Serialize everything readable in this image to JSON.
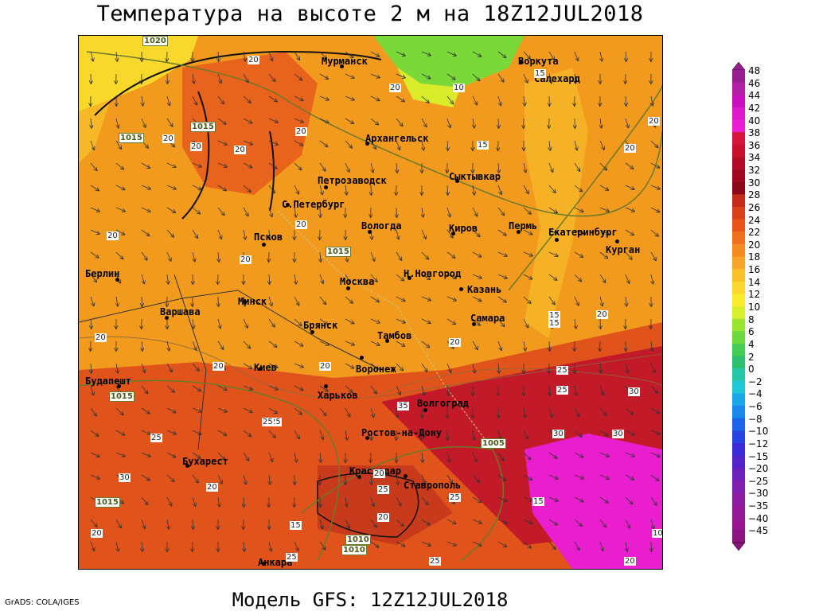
{
  "title": "Температура на высоте 2 м на 18Z12JUL2018",
  "footer": "Модель GFS: 12Z12JUL2018",
  "credit": "GrADS: COLA/IGES",
  "legend": {
    "labels": [
      "48",
      "46",
      "44",
      "42",
      "40",
      "38",
      "36",
      "34",
      "32",
      "30",
      "28",
      "26",
      "24",
      "22",
      "20",
      "18",
      "16",
      "14",
      "12",
      "10",
      "8",
      "6",
      "4",
      "2",
      "0",
      "−2",
      "−4",
      "−6",
      "−8",
      "−10",
      "−12",
      "−15",
      "−20",
      "−25",
      "−30",
      "−35",
      "−40",
      "−45"
    ],
    "colors": [
      "#9a1d8f",
      "#b41fa8",
      "#c80fb9",
      "#dc19c8",
      "#ec1ed2",
      "#d9143c",
      "#c8102c",
      "#b40c24",
      "#a00a1c",
      "#8c0814",
      "#c42a18",
      "#d8401a",
      "#e8561c",
      "#f07020",
      "#f58a22",
      "#f8a426",
      "#fac02a",
      "#fcd82e",
      "#f8ec2c",
      "#d8ef2a",
      "#9ce630",
      "#6cda3a",
      "#44cc54",
      "#2cc070",
      "#20c8a8",
      "#1cc8d8",
      "#18a8e8",
      "#1888ec",
      "#1c64ec",
      "#2844e4",
      "#3c2cd8",
      "#5424c8",
      "#6c20bc",
      "#8020b0",
      "#8c1ca4",
      "#941898",
      "#961690",
      "#8a1480"
    ]
  },
  "cities": [
    {
      "name": "Мурманск"
    },
    {
      "name": "Воркута"
    },
    {
      "name": "Салехард"
    },
    {
      "name": "Архангельск"
    },
    {
      "name": "Петрозаводск"
    },
    {
      "name": "Сыктывкар"
    },
    {
      "name": "С.Петербург"
    },
    {
      "name": "Вологда"
    },
    {
      "name": "Киров"
    },
    {
      "name": "Пермь"
    },
    {
      "name": "Екатеринбург"
    },
    {
      "name": "Курган"
    },
    {
      "name": "Псков"
    },
    {
      "name": "Берлин"
    },
    {
      "name": "Москва"
    },
    {
      "name": "Н.Новгород"
    },
    {
      "name": "Казань"
    },
    {
      "name": "Минск"
    },
    {
      "name": "Варшава"
    },
    {
      "name": "Брянск"
    },
    {
      "name": "Самара"
    },
    {
      "name": "Тамбов"
    },
    {
      "name": "Киев"
    },
    {
      "name": "Воронеж"
    },
    {
      "name": "Будапешт"
    },
    {
      "name": "Харьков"
    },
    {
      "name": "Волгоград"
    },
    {
      "name": "Ростов-на-Дону"
    },
    {
      "name": "Бухарест"
    },
    {
      "name": "Краснодар"
    },
    {
      "name": "Ставрополь"
    },
    {
      "name": "Анкара"
    }
  ],
  "isotherm_labels": [
    "20",
    "20",
    "20",
    "20",
    "20",
    "20",
    "20",
    "15",
    "10",
    "15",
    "20",
    "20",
    "20",
    "20",
    "20",
    "20",
    "15",
    "15",
    "20",
    "20",
    "20",
    "25",
    "25",
    "30",
    "30",
    "35",
    "25",
    "25",
    "30",
    "20",
    "20",
    "20",
    "25",
    "20",
    "25",
    "20",
    "25",
    "25",
    "15",
    "25",
    "20",
    "30",
    "15",
    "10",
    "20"
  ],
  "pressure_labels": [
    "1020",
    "1015",
    "1015",
    "1015",
    "1015",
    "1015",
    "1005",
    "1010",
    "1010"
  ]
}
